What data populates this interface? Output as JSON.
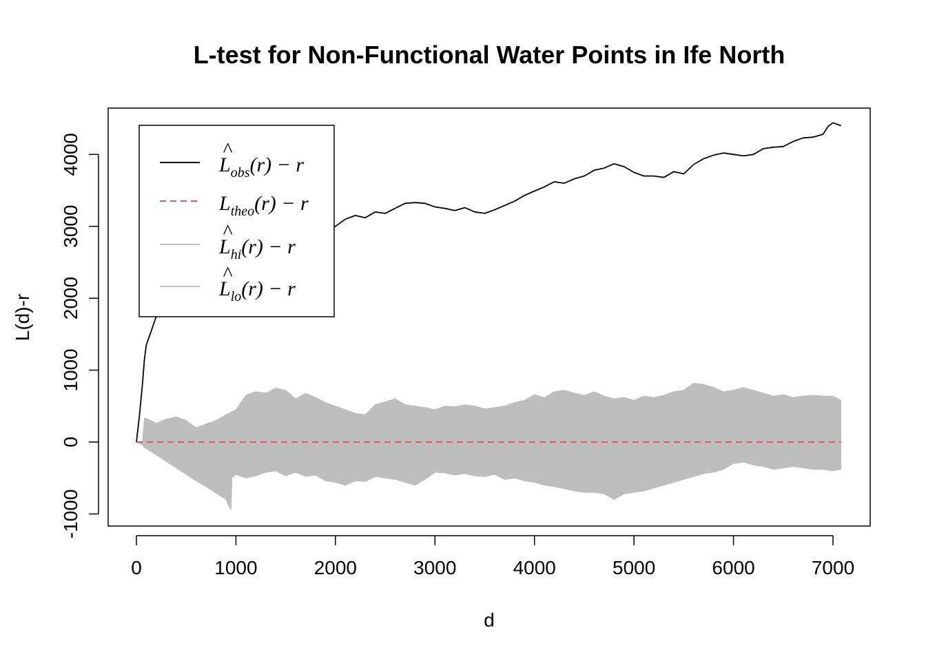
{
  "chart_data": {
    "type": "line",
    "title": "L-test for Non-Functional Water Points in Ife North",
    "xlabel": "d",
    "ylabel": "L(d)-r",
    "xlim": [
      0,
      7100
    ],
    "ylim": [
      -1000,
      4500
    ],
    "x_ticks": [
      0,
      1000,
      2000,
      3000,
      4000,
      5000,
      6000,
      7000
    ],
    "y_ticks": [
      -1000,
      0,
      1000,
      2000,
      3000,
      4000
    ],
    "x_tick_labels": [
      "0",
      "1000",
      "2000",
      "3000",
      "4000",
      "5000",
      "6000",
      "7000"
    ],
    "y_tick_labels": [
      "-1000",
      "0",
      "1000",
      "2000",
      "3000",
      "4000"
    ],
    "grid": false,
    "legend_position": "top-left",
    "colors": {
      "obs": "#000000",
      "theo": "#DF536B",
      "envelope": "#BEBEBE"
    },
    "legend": [
      {
        "series": "obs",
        "hat": true,
        "base": "L",
        "sub": "obs",
        "rest": "(r) − r",
        "style": "solid",
        "color": "#000000"
      },
      {
        "series": "theo",
        "hat": false,
        "base": "L",
        "sub": "theo",
        "rest": "(r) − r",
        "style": "dashed",
        "color": "#DF536B"
      },
      {
        "series": "hi",
        "hat": true,
        "base": "L",
        "sub": "hi",
        "rest": "(r) − r",
        "style": "solid",
        "color": "#BEBEBE"
      },
      {
        "series": "lo",
        "hat": true,
        "base": "L",
        "sub": "lo",
        "rest": "(r) − r",
        "style": "solid",
        "color": "#BEBEBE"
      }
    ],
    "series": [
      {
        "key": "obs",
        "x": [
          0,
          30,
          60,
          80,
          100,
          150,
          200,
          300,
          400,
          500,
          600,
          700,
          800,
          900,
          1000,
          1100,
          1200,
          1300,
          1400,
          1500,
          1600,
          1700,
          1800,
          1900,
          2000,
          2100,
          2200,
          2300,
          2400,
          2500,
          2600,
          2700,
          2800,
          2900,
          3000,
          3100,
          3200,
          3300,
          3400,
          3500,
          3600,
          3700,
          3800,
          3900,
          4000,
          4100,
          4200,
          4300,
          4400,
          4500,
          4600,
          4700,
          4800,
          4900,
          5000,
          5100,
          5200,
          5300,
          5400,
          5500,
          5600,
          5700,
          5800,
          5900,
          6000,
          6100,
          6200,
          6300,
          6400,
          6500,
          6600,
          6700,
          6800,
          6900,
          6950,
          7000,
          7080
        ],
        "y": [
          0,
          360,
          800,
          1150,
          1350,
          1550,
          1750,
          2050,
          2250,
          2400,
          2480,
          2530,
          2560,
          2530,
          2510,
          2560,
          2480,
          2620,
          2750,
          2850,
          2880,
          2920,
          2850,
          2970,
          3000,
          3100,
          3150,
          3120,
          3200,
          3180,
          3250,
          3320,
          3330,
          3320,
          3270,
          3250,
          3220,
          3260,
          3200,
          3180,
          3230,
          3290,
          3350,
          3430,
          3490,
          3550,
          3620,
          3600,
          3660,
          3700,
          3780,
          3810,
          3870,
          3830,
          3750,
          3700,
          3700,
          3680,
          3760,
          3730,
          3860,
          3940,
          3990,
          4020,
          4000,
          3980,
          4000,
          4080,
          4100,
          4110,
          4180,
          4230,
          4240,
          4280,
          4390,
          4440,
          4400
        ]
      },
      {
        "key": "theo",
        "x": [
          0,
          7080
        ],
        "y": [
          0,
          0
        ]
      },
      {
        "key": "hi",
        "x": [
          0,
          60,
          80,
          100,
          200,
          300,
          400,
          500,
          600,
          700,
          800,
          900,
          1000,
          1100,
          1200,
          1300,
          1400,
          1500,
          1600,
          1700,
          1800,
          1900,
          2000,
          2100,
          2200,
          2300,
          2400,
          2500,
          2600,
          2700,
          2800,
          2900,
          3000,
          3100,
          3200,
          3300,
          3400,
          3500,
          3600,
          3700,
          3800,
          3900,
          4000,
          4100,
          4200,
          4300,
          4400,
          4500,
          4600,
          4700,
          4800,
          4900,
          5000,
          5100,
          5200,
          5300,
          5400,
          5500,
          5600,
          5700,
          5800,
          5900,
          6000,
          6100,
          6200,
          6300,
          6400,
          6500,
          6600,
          6700,
          6800,
          6900,
          7000,
          7080
        ],
        "y": [
          0,
          0,
          330,
          330,
          260,
          320,
          350,
          300,
          200,
          250,
          300,
          380,
          450,
          650,
          700,
          680,
          750,
          720,
          600,
          680,
          620,
          550,
          500,
          450,
          400,
          380,
          520,
          560,
          600,
          520,
          500,
          480,
          450,
          500,
          490,
          520,
          500,
          460,
          480,
          500,
          550,
          580,
          660,
          620,
          700,
          720,
          680,
          650,
          700,
          640,
          600,
          620,
          580,
          640,
          620,
          650,
          700,
          720,
          820,
          800,
          760,
          700,
          720,
          760,
          720,
          680,
          640,
          660,
          620,
          640,
          650,
          640,
          640,
          580
        ]
      },
      {
        "key": "lo",
        "x": [
          0,
          60,
          80,
          100,
          200,
          300,
          400,
          500,
          600,
          700,
          800,
          900,
          950,
          960,
          1000,
          1100,
          1200,
          1300,
          1400,
          1500,
          1600,
          1700,
          1800,
          1900,
          2000,
          2100,
          2200,
          2300,
          2400,
          2500,
          2600,
          2700,
          2800,
          2900,
          3000,
          3100,
          3200,
          3300,
          3400,
          3500,
          3600,
          3700,
          3800,
          3900,
          4000,
          4100,
          4200,
          4300,
          4400,
          4500,
          4600,
          4700,
          4800,
          4900,
          5000,
          5100,
          5200,
          5300,
          5400,
          5500,
          5600,
          5700,
          5800,
          5900,
          6000,
          6100,
          6200,
          6300,
          6400,
          6500,
          6600,
          6700,
          6800,
          6900,
          7000,
          7080
        ],
        "y": [
          0,
          -40,
          -80,
          -90,
          -180,
          -270,
          -360,
          -450,
          -540,
          -620,
          -710,
          -800,
          -950,
          -500,
          -450,
          -500,
          -470,
          -420,
          -400,
          -470,
          -420,
          -480,
          -460,
          -540,
          -560,
          -600,
          -540,
          -550,
          -480,
          -500,
          -520,
          -560,
          -600,
          -520,
          -420,
          -430,
          -460,
          -440,
          -470,
          -480,
          -450,
          -520,
          -500,
          -540,
          -560,
          -600,
          -620,
          -650,
          -680,
          -700,
          -700,
          -720,
          -800,
          -720,
          -700,
          -680,
          -640,
          -600,
          -560,
          -520,
          -480,
          -440,
          -420,
          -380,
          -300,
          -280,
          -320,
          -340,
          -380,
          -360,
          -340,
          -360,
          -380,
          -380,
          -400,
          -380
        ]
      }
    ]
  }
}
